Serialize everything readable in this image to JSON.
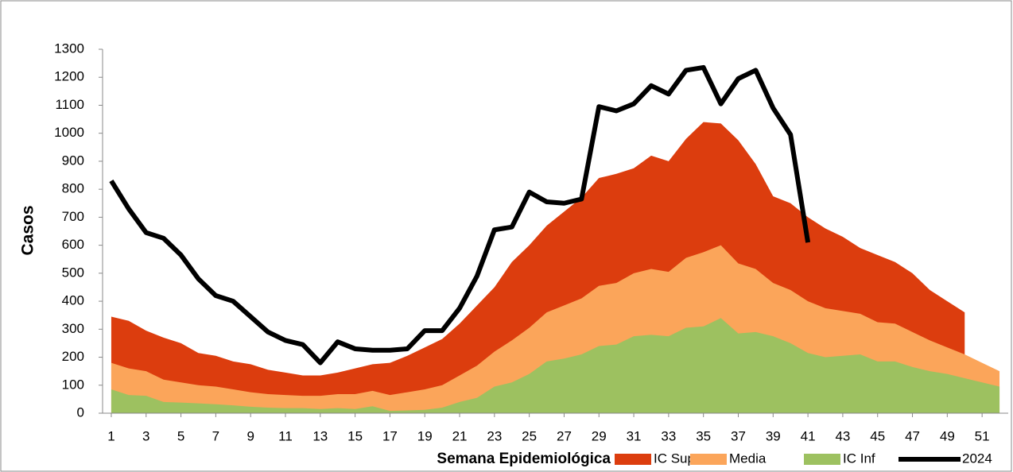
{
  "chart_data": {
    "type": "area",
    "y_label": "Casos",
    "x_label": "Semana Epidemiológica",
    "x": [
      1,
      2,
      3,
      4,
      5,
      6,
      7,
      8,
      9,
      10,
      11,
      12,
      13,
      14,
      15,
      16,
      17,
      18,
      19,
      20,
      21,
      22,
      23,
      24,
      25,
      26,
      27,
      28,
      29,
      30,
      31,
      32,
      33,
      34,
      35,
      36,
      37,
      38,
      39,
      40,
      41,
      42,
      43,
      44,
      45,
      46,
      47,
      48,
      49,
      50,
      51,
      52
    ],
    "xlim": [
      0.5,
      52.5
    ],
    "xticks": [
      1,
      3,
      5,
      7,
      9,
      11,
      13,
      15,
      17,
      19,
      21,
      23,
      25,
      27,
      29,
      31,
      33,
      35,
      37,
      39,
      41,
      43,
      45,
      47,
      49,
      51
    ],
    "ylim": [
      0,
      1300
    ],
    "yticks": [
      0,
      100,
      200,
      300,
      400,
      500,
      600,
      700,
      800,
      900,
      1000,
      1100,
      1200,
      1300
    ],
    "series": [
      {
        "name": "IC Sup",
        "color": "#dc3d0e",
        "kind": "area",
        "values": [
          345,
          330,
          295,
          270,
          250,
          215,
          205,
          185,
          175,
          155,
          145,
          135,
          135,
          145,
          160,
          175,
          180,
          205,
          235,
          265,
          320,
          385,
          450,
          540,
          600,
          670,
          720,
          770,
          840,
          855,
          875,
          920,
          900,
          980,
          1040,
          1035,
          975,
          890,
          775,
          750,
          700,
          660,
          630,
          590,
          565,
          540,
          500,
          440,
          400,
          360,
          null,
          null
        ]
      },
      {
        "name": "Media",
        "color": "#fba55a",
        "kind": "area",
        "values": [
          180,
          160,
          150,
          120,
          110,
          100,
          95,
          85,
          75,
          68,
          65,
          62,
          62,
          68,
          68,
          80,
          65,
          75,
          85,
          100,
          135,
          170,
          220,
          260,
          305,
          360,
          385,
          410,
          455,
          465,
          500,
          515,
          505,
          555,
          575,
          600,
          535,
          515,
          465,
          440,
          400,
          375,
          365,
          355,
          325,
          320,
          290,
          260,
          235,
          210,
          180,
          150
        ]
      },
      {
        "name": "IC Inf",
        "color": "#9dc160",
        "kind": "area",
        "values": [
          85,
          65,
          62,
          40,
          38,
          35,
          32,
          28,
          23,
          20,
          18,
          18,
          15,
          18,
          15,
          25,
          8,
          10,
          12,
          20,
          40,
          55,
          95,
          110,
          140,
          185,
          195,
          210,
          240,
          245,
          275,
          280,
          275,
          305,
          310,
          340,
          285,
          290,
          275,
          250,
          215,
          200,
          205,
          210,
          185,
          185,
          165,
          150,
          140,
          125,
          110,
          95
        ]
      },
      {
        "name": "2024",
        "color": "#000000",
        "kind": "line",
        "values": [
          830,
          730,
          645,
          625,
          565,
          480,
          420,
          400,
          345,
          290,
          260,
          245,
          180,
          255,
          230,
          225,
          225,
          230,
          295,
          295,
          375,
          490,
          655,
          665,
          790,
          755,
          750,
          765,
          1095,
          1080,
          1105,
          1170,
          1140,
          1225,
          1235,
          1105,
          1195,
          1225,
          1090,
          995,
          610,
          null,
          null,
          null,
          null,
          null,
          null,
          null,
          null,
          null,
          null,
          null
        ]
      }
    ]
  }
}
